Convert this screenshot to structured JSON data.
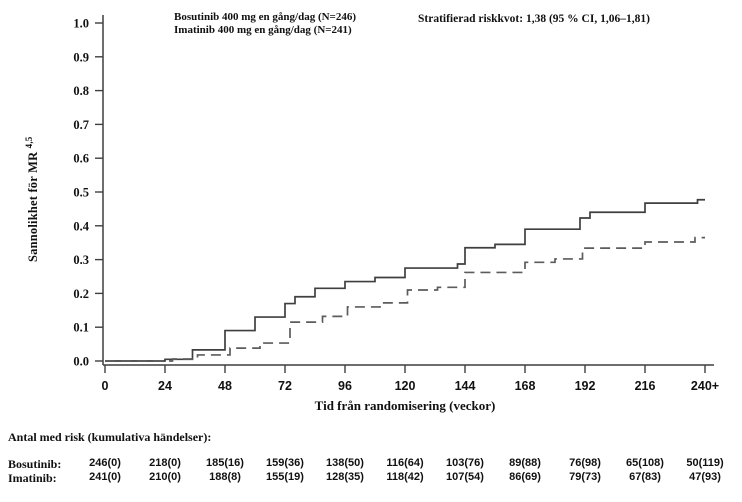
{
  "chart_data": {
    "type": "line",
    "subtype": "kaplan-meier-cumulative-incidence",
    "annotation": "Stratifierad riskkvot: 1,38 (95 % CI, 1,06–1,81)",
    "xlabel": "Tid från randomisering (veckor)",
    "ylabel": "Sannolikhet för MR",
    "ylabel_superscript": "4,5",
    "xlim": [
      0,
      240
    ],
    "ylim": [
      0.0,
      1.0
    ],
    "grid": false,
    "legend_position": "top-left-inside",
    "xticks": [
      0,
      24,
      48,
      72,
      96,
      120,
      144,
      168,
      192,
      216,
      240
    ],
    "xtick_labels": [
      "0",
      "24",
      "48",
      "72",
      "96",
      "120",
      "144",
      "168",
      "192",
      "216",
      "240+"
    ],
    "ytick_values": [
      0.0,
      0.1,
      0.2,
      0.3,
      0.4,
      0.5,
      0.6,
      0.7,
      0.8,
      0.9,
      1.0
    ],
    "ytick_labels": [
      "0.0",
      "0.1",
      "0.2",
      "0.3",
      "0.4",
      "0.5",
      "0.6",
      "0.7",
      "0.8",
      "0.9",
      "1.0"
    ],
    "axis_color": "#3f3f3f",
    "series": [
      {
        "name": "Bosutinib 400 mg en gång/dag (N=246)",
        "style": "solid",
        "color": "#3f3f3f",
        "steps": [
          [
            0,
            0.0
          ],
          [
            24,
            0.005
          ],
          [
            35,
            0.033
          ],
          [
            48,
            0.09
          ],
          [
            60,
            0.13
          ],
          [
            72,
            0.17
          ],
          [
            76,
            0.19
          ],
          [
            84,
            0.215
          ],
          [
            96,
            0.235
          ],
          [
            108,
            0.247
          ],
          [
            120,
            0.275
          ],
          [
            141,
            0.287
          ],
          [
            144,
            0.335
          ],
          [
            156,
            0.345
          ],
          [
            168,
            0.39
          ],
          [
            190,
            0.423
          ],
          [
            194,
            0.44
          ],
          [
            216,
            0.467
          ],
          [
            237,
            0.477
          ],
          [
            240,
            0.477
          ]
        ]
      },
      {
        "name": "Imatinib 400 mg en gång/dag (N=241)",
        "style": "dashed",
        "color": "#5c5c5c",
        "steps": [
          [
            0,
            0.0
          ],
          [
            27,
            0.006
          ],
          [
            37,
            0.018
          ],
          [
            50,
            0.038
          ],
          [
            62,
            0.053
          ],
          [
            74,
            0.115
          ],
          [
            87,
            0.132
          ],
          [
            97,
            0.16
          ],
          [
            110,
            0.172
          ],
          [
            121,
            0.21
          ],
          [
            133,
            0.218
          ],
          [
            144,
            0.262
          ],
          [
            168,
            0.292
          ],
          [
            180,
            0.302
          ],
          [
            191,
            0.334
          ],
          [
            216,
            0.352
          ],
          [
            236,
            0.365
          ],
          [
            240,
            0.365
          ]
        ]
      }
    ]
  },
  "risk_table": {
    "title": "Antal med risk (kumulativa händelser):",
    "rows": [
      {
        "label": "Bosutinib:",
        "values": [
          "246(0)",
          "218(0)",
          "185(16)",
          "159(36)",
          "138(50)",
          "116(64)",
          "103(76)",
          "89(88)",
          "76(98)",
          "65(108)",
          "50(119)"
        ]
      },
      {
        "label": "Imatinib:",
        "values": [
          "241(0)",
          "210(0)",
          "188(8)",
          "155(19)",
          "128(35)",
          "118(42)",
          "107(54)",
          "86(69)",
          "79(73)",
          "67(83)",
          "47(93)"
        ]
      }
    ]
  }
}
